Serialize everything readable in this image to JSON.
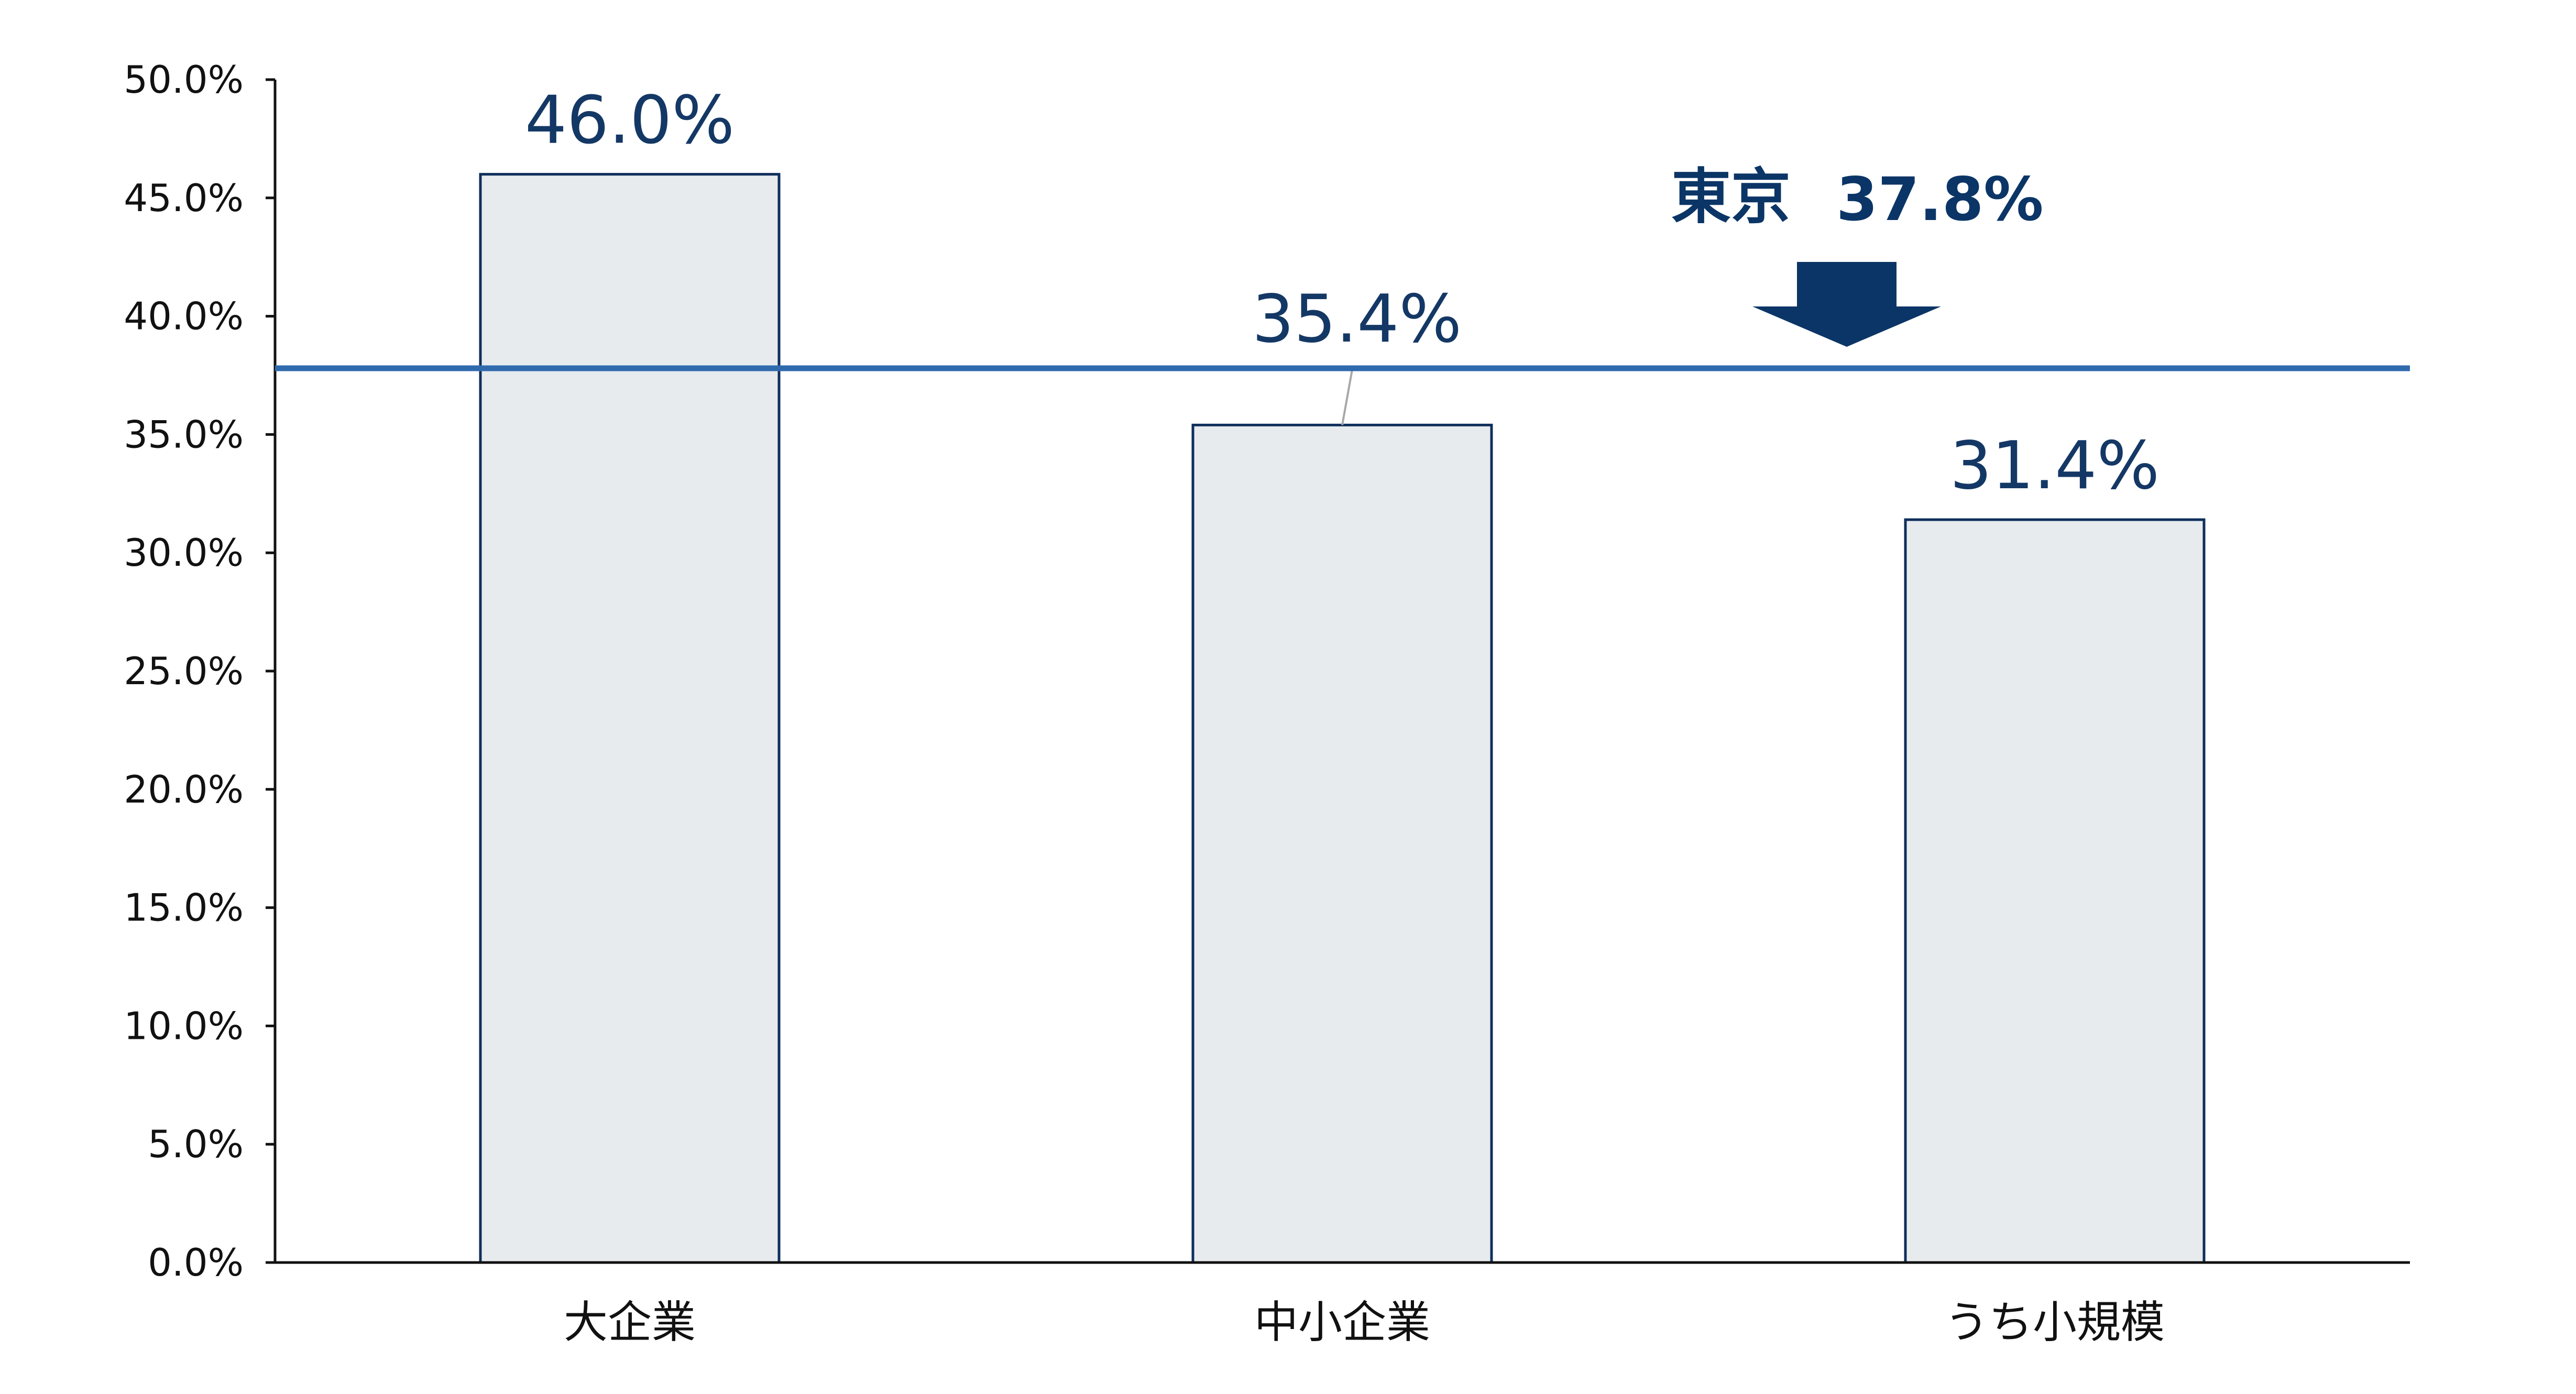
{
  "chart_data": {
    "type": "bar",
    "categories": [
      "大企業",
      "中小企業",
      "うち小規模"
    ],
    "values": [
      46.0,
      35.4,
      31.4
    ],
    "value_labels": [
      "46.0%",
      "35.4%",
      "31.4%"
    ],
    "ylim": [
      0,
      50
    ],
    "y_tick_step": 5,
    "y_tick_labels": [
      "0.0%",
      "5.0%",
      "10.0%",
      "15.0%",
      "20.0%",
      "25.0%",
      "30.0%",
      "35.0%",
      "40.0%",
      "45.0%",
      "50.0%"
    ],
    "xlabel": "",
    "ylabel": "",
    "grid": false,
    "legend": "none",
    "reference_line": {
      "name": "東京",
      "value": 37.8,
      "value_label": "37.8%"
    },
    "colors": {
      "bar_fill": "#e7ebee",
      "bar_stroke": "#0f2f5c",
      "reference_line": "#2f6aad",
      "arrow": "#0b3566",
      "data_label": "#143865",
      "axis": "#111111",
      "leader_line": "#a8a8a8"
    }
  }
}
